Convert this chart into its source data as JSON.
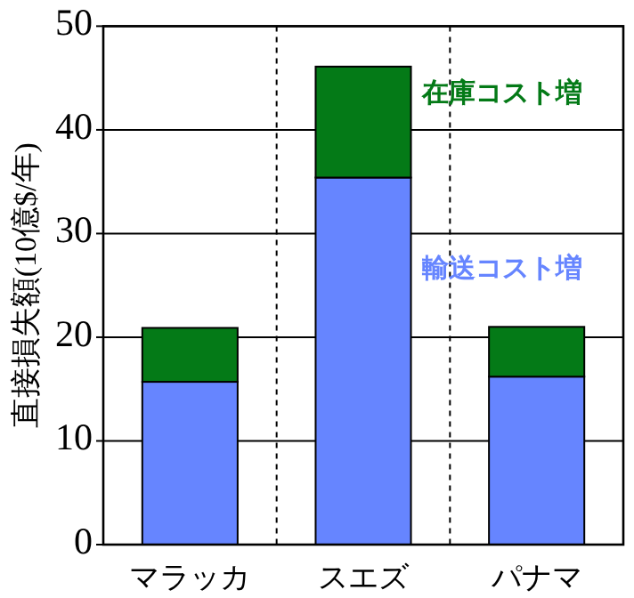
{
  "chart_data": {
    "type": "bar",
    "stacked": true,
    "ylabel": "直接損失額(10億$/年)",
    "categories": [
      "マラッカ",
      "スエズ",
      "パナマ"
    ],
    "series": [
      {
        "name": "輸送コスト増",
        "color": "#6685ff",
        "values": [
          15.7,
          35.4,
          16.2
        ]
      },
      {
        "name": "在庫コスト増",
        "color": "#047a17",
        "values": [
          5.2,
          10.7,
          4.8
        ]
      }
    ],
    "ylim": [
      0,
      50
    ],
    "yticks": [
      0,
      10,
      20,
      30,
      40,
      50
    ],
    "grid": true,
    "legend": false
  }
}
